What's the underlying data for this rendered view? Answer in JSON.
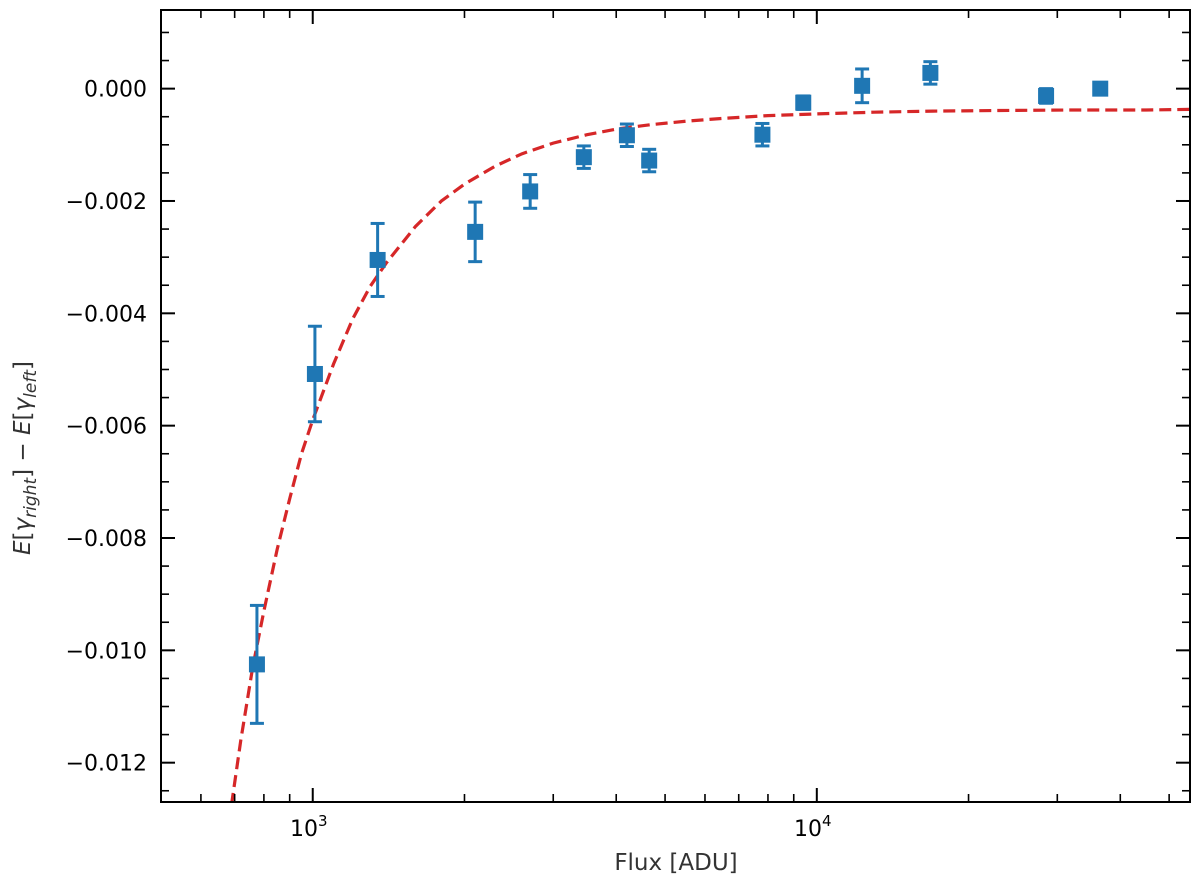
{
  "chart_data": {
    "type": "scatter",
    "xlabel": "Flux [ADU]",
    "ylabel_parts": [
      "E",
      "[",
      "γ",
      "right",
      "] − ",
      "E",
      "[",
      "γ",
      "left",
      "]"
    ],
    "x_scale": "log",
    "xlim": [
      500,
      55000
    ],
    "ylim": [
      -0.0127,
      0.0014
    ],
    "x_ticks": [
      {
        "value": 1000,
        "base": "10",
        "exp": "3"
      },
      {
        "value": 10000,
        "base": "10",
        "exp": "4"
      }
    ],
    "y_ticks": [
      {
        "value": 0.0,
        "label": "0.000"
      },
      {
        "value": -0.002,
        "label": "−0.002"
      },
      {
        "value": -0.004,
        "label": "−0.004"
      },
      {
        "value": -0.006,
        "label": "−0.006"
      },
      {
        "value": -0.008,
        "label": "−0.008"
      },
      {
        "value": -0.01,
        "label": "−0.010"
      },
      {
        "value": -0.012,
        "label": "−0.012"
      }
    ],
    "grid": false,
    "series": [
      {
        "kind": "errorbar-markers",
        "color": "#1f77b4",
        "marker": "square",
        "points": [
          {
            "x": 775,
            "y": -0.01025,
            "err": 0.00105
          },
          {
            "x": 1010,
            "y": -0.00508,
            "err": 0.00085
          },
          {
            "x": 1345,
            "y": -0.00305,
            "err": 0.00065
          },
          {
            "x": 2100,
            "y": -0.00255,
            "err": 0.00053
          },
          {
            "x": 2700,
            "y": -0.00183,
            "err": 0.0003
          },
          {
            "x": 3450,
            "y": -0.00122,
            "err": 0.0002
          },
          {
            "x": 4200,
            "y": -0.00083,
            "err": 0.0002
          },
          {
            "x": 4650,
            "y": -0.00128,
            "err": 0.0002
          },
          {
            "x": 7800,
            "y": -0.00082,
            "err": 0.0002
          },
          {
            "x": 9400,
            "y": -0.00025,
            "err": 0.00012
          },
          {
            "x": 12300,
            "y": 5e-05,
            "err": 0.0003
          },
          {
            "x": 16800,
            "y": 0.00028,
            "err": 0.0002
          },
          {
            "x": 28500,
            "y": -0.00013,
            "err": 0.00013
          },
          {
            "x": 36500,
            "y": 0.0,
            "err": 8e-05
          }
        ]
      },
      {
        "kind": "fit-line",
        "color": "#d62728",
        "style": "dashed",
        "x": [
          690,
          720,
          760,
          800,
          850,
          900,
          950,
          1000,
          1100,
          1200,
          1300,
          1400,
          1600,
          1800,
          2000,
          2300,
          2600,
          3000,
          3500,
          4000,
          4700,
          5500,
          6500,
          8000,
          10000,
          13000,
          17000,
          23000,
          32000,
          45000,
          55000
        ],
        "y": [
          -0.01275,
          -0.0116,
          -0.0103,
          -0.0093,
          -0.0082,
          -0.0073,
          -0.0065,
          -0.0059,
          -0.0049,
          -0.0041,
          -0.00352,
          -0.0031,
          -0.00245,
          -0.002,
          -0.0017,
          -0.00138,
          -0.00116,
          -0.00097,
          -0.00082,
          -0.00072,
          -0.00064,
          -0.00058,
          -0.00053,
          -0.00048,
          -0.00045,
          -0.00042,
          -0.0004,
          -0.00039,
          -0.00038,
          -0.00038,
          -0.00037
        ]
      }
    ]
  }
}
